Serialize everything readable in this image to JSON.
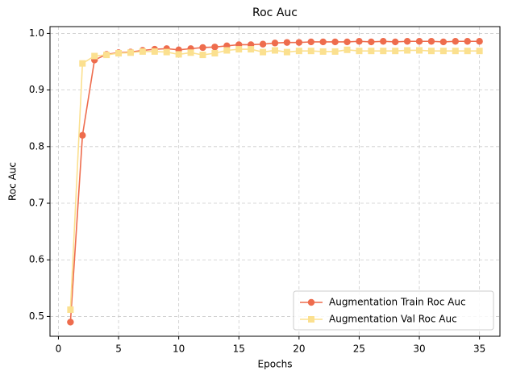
{
  "chart_data": {
    "type": "line",
    "title": "Roc Auc",
    "x_label": "Epochs",
    "y_label": "Roc Auc",
    "x": [
      1,
      2,
      3,
      4,
      5,
      6,
      7,
      8,
      9,
      10,
      11,
      12,
      13,
      14,
      15,
      16,
      17,
      18,
      19,
      20,
      21,
      22,
      23,
      24,
      25,
      26,
      27,
      28,
      29,
      30,
      31,
      32,
      33,
      34,
      35
    ],
    "series": [
      {
        "name": "Augmentation Train Roc Auc",
        "color": "#ee6c4d",
        "marker": "circle",
        "values": [
          0.49,
          0.82,
          0.953,
          0.963,
          0.966,
          0.967,
          0.97,
          0.972,
          0.973,
          0.971,
          0.973,
          0.975,
          0.976,
          0.978,
          0.98,
          0.98,
          0.981,
          0.983,
          0.984,
          0.984,
          0.985,
          0.985,
          0.985,
          0.985,
          0.986,
          0.985,
          0.986,
          0.985,
          0.986,
          0.986,
          0.986,
          0.985,
          0.986,
          0.986,
          0.986
        ]
      },
      {
        "name": "Augmentation Val Roc Auc",
        "color": "#fbe08f",
        "marker": "square",
        "values": [
          0.512,
          0.947,
          0.96,
          0.962,
          0.965,
          0.966,
          0.968,
          0.968,
          0.967,
          0.963,
          0.966,
          0.962,
          0.965,
          0.97,
          0.972,
          0.972,
          0.967,
          0.97,
          0.967,
          0.969,
          0.969,
          0.968,
          0.968,
          0.971,
          0.969,
          0.969,
          0.969,
          0.969,
          0.97,
          0.97,
          0.969,
          0.969,
          0.969,
          0.969,
          0.969
        ]
      }
    ],
    "xlim": [
      -0.7,
      36.7
    ],
    "xticks": [
      0,
      5,
      10,
      15,
      20,
      25,
      30,
      35
    ],
    "ylim": [
      0.465,
      1.012
    ],
    "yticks": [
      0.5,
      0.6,
      0.7,
      0.8,
      0.9,
      {
        "value": 1.0,
        "label": "1.0"
      }
    ],
    "grid": true,
    "legend": "lower right"
  }
}
